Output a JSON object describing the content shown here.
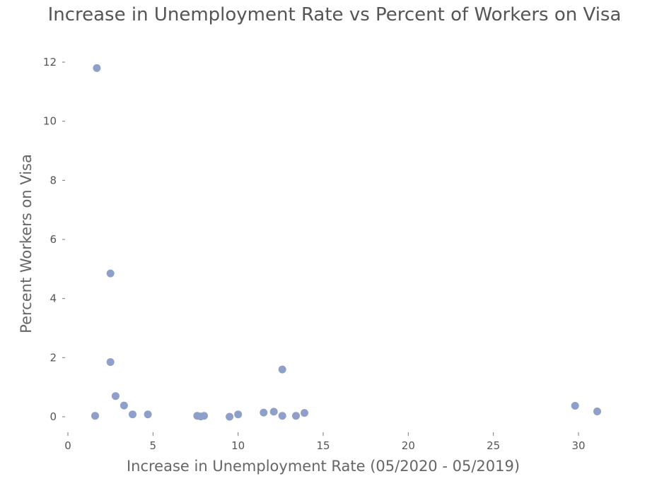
{
  "chart_data": {
    "type": "scatter",
    "title": "Increase in Unemployment Rate vs Percent of Workers on Visa",
    "xlabel": "Increase in Unemployment Rate (05/2020 - 05/2019)",
    "ylabel": "Percent Workers on Visa",
    "xlim": [
      0,
      30.5
    ],
    "ylim": [
      -0.5,
      12.5
    ],
    "x_ticks": [
      0,
      5,
      10,
      15,
      20,
      25,
      30
    ],
    "y_ticks": [
      0,
      2,
      4,
      6,
      8,
      10,
      12
    ],
    "grid": false,
    "marker_color": "#8e9fc9",
    "points": [
      {
        "x": 1.7,
        "y": 11.8
      },
      {
        "x": 2.5,
        "y": 4.85
      },
      {
        "x": 2.5,
        "y": 1.85
      },
      {
        "x": 2.8,
        "y": 0.7
      },
      {
        "x": 3.3,
        "y": 0.38
      },
      {
        "x": 3.8,
        "y": 0.08
      },
      {
        "x": 1.6,
        "y": 0.03
      },
      {
        "x": 4.7,
        "y": 0.08
      },
      {
        "x": 7.6,
        "y": 0.03
      },
      {
        "x": 7.8,
        "y": 0.01
      },
      {
        "x": 8.0,
        "y": 0.03
      },
      {
        "x": 9.5,
        "y": 0.0
      },
      {
        "x": 10.0,
        "y": 0.08
      },
      {
        "x": 11.5,
        "y": 0.14
      },
      {
        "x": 12.1,
        "y": 0.17
      },
      {
        "x": 12.6,
        "y": 1.6
      },
      {
        "x": 12.6,
        "y": 0.03
      },
      {
        "x": 13.4,
        "y": 0.03
      },
      {
        "x": 13.9,
        "y": 0.13
      },
      {
        "x": 29.8,
        "y": 0.37
      },
      {
        "x": 31.1,
        "y": 0.18
      }
    ]
  }
}
